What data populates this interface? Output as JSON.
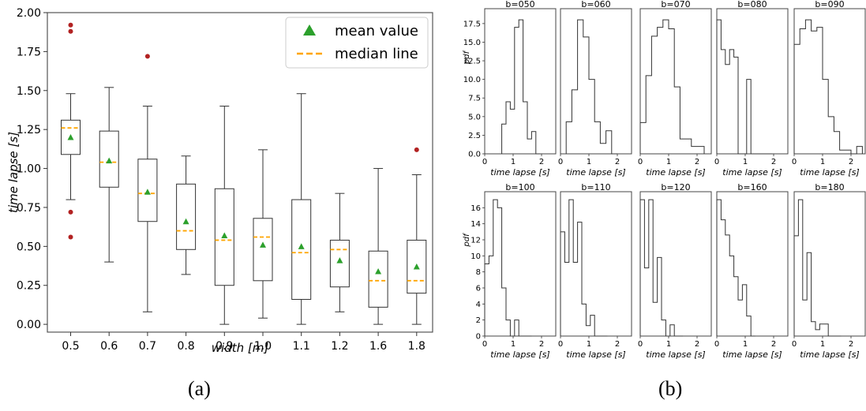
{
  "panel_a_caption": "(a)",
  "panel_b_caption": "(b)",
  "chart_data": [
    {
      "type": "box",
      "xlabel": "width [m]",
      "ylabel": "time lapse [s]",
      "ylim": [
        -0.05,
        2.0
      ],
      "yticks": [
        "0.00",
        "0.25",
        "0.50",
        "0.75",
        "1.00",
        "1.25",
        "1.50",
        "1.75",
        "2.00"
      ],
      "legend_position": "top-right",
      "legend": [
        {
          "label": "mean value",
          "marker": "green-triangle"
        },
        {
          "label": "median line",
          "marker": "orange-dashed-line"
        }
      ],
      "colors": {
        "mean": "#2ca02c",
        "median": "#ffa500",
        "outlier": "#b22222",
        "box": "#333333"
      },
      "categories": [
        "0.5",
        "0.6",
        "0.7",
        "0.8",
        "0.9",
        "1.0",
        "1.1",
        "1.2",
        "1.6",
        "1.8"
      ],
      "boxes": [
        {
          "whisker_low": 0.8,
          "q1": 1.09,
          "median": 1.26,
          "q3": 1.31,
          "whisker_high": 1.48,
          "mean": 1.2,
          "outliers": [
            1.92,
            1.88,
            0.72,
            0.56
          ]
        },
        {
          "whisker_low": 0.4,
          "q1": 0.88,
          "median": 1.04,
          "q3": 1.24,
          "whisker_high": 1.52,
          "mean": 1.05,
          "outliers": []
        },
        {
          "whisker_low": 0.08,
          "q1": 0.66,
          "median": 0.84,
          "q3": 1.06,
          "whisker_high": 1.4,
          "mean": 0.85,
          "outliers": [
            1.72
          ]
        },
        {
          "whisker_low": 0.32,
          "q1": 0.48,
          "median": 0.6,
          "q3": 0.9,
          "whisker_high": 1.08,
          "mean": 0.66,
          "outliers": []
        },
        {
          "whisker_low": 0.0,
          "q1": 0.25,
          "median": 0.54,
          "q3": 0.87,
          "whisker_high": 1.4,
          "mean": 0.57,
          "outliers": []
        },
        {
          "whisker_low": 0.04,
          "q1": 0.28,
          "median": 0.56,
          "q3": 0.68,
          "whisker_high": 1.12,
          "mean": 0.51,
          "outliers": []
        },
        {
          "whisker_low": 0.0,
          "q1": 0.16,
          "median": 0.46,
          "q3": 0.8,
          "whisker_high": 1.48,
          "mean": 0.5,
          "outliers": []
        },
        {
          "whisker_low": 0.08,
          "q1": 0.24,
          "median": 0.48,
          "q3": 0.54,
          "whisker_high": 0.84,
          "mean": 0.41,
          "outliers": []
        },
        {
          "whisker_low": 0.0,
          "q1": 0.11,
          "median": 0.28,
          "q3": 0.47,
          "whisker_high": 1.0,
          "mean": 0.34,
          "outliers": []
        },
        {
          "whisker_low": 0.0,
          "q1": 0.2,
          "median": 0.28,
          "q3": 0.54,
          "whisker_high": 0.96,
          "mean": 0.37,
          "outliers": [
            1.12
          ]
        }
      ]
    },
    {
      "type": "histogram-grid",
      "xlabel": "time lapse [s]",
      "ylabel": "pdf",
      "xlim": [
        0,
        2.5
      ],
      "xticks": [
        "0",
        "1",
        "2"
      ],
      "rows": [
        {
          "ylim": [
            0,
            19.5
          ],
          "yticks": [
            "0.0",
            "2.5",
            "5.0",
            "7.5",
            "10.0",
            "12.5",
            "15.0",
            "17.5"
          ],
          "panels": [
            {
              "title": "b=050",
              "edges": [
                0.6,
                0.75,
                0.9,
                1.05,
                1.2,
                1.35,
                1.5,
                1.65,
                1.8,
                1.95
              ],
              "values": [
                4,
                7,
                6,
                17,
                18,
                7,
                2,
                3,
                0
              ]
            },
            {
              "title": "b=060",
              "edges": [
                0.2,
                0.4,
                0.6,
                0.8,
                1.0,
                1.2,
                1.4,
                1.6,
                1.8,
                2.0
              ],
              "values": [
                4.3,
                8.6,
                18,
                15.7,
                10,
                4.3,
                1.4,
                3.1,
                0
              ]
            },
            {
              "title": "b=070",
              "edges": [
                0.0,
                0.2,
                0.4,
                0.6,
                0.8,
                1.0,
                1.2,
                1.4,
                1.6,
                1.8,
                2.0,
                2.25
              ],
              "values": [
                4.2,
                10.5,
                15.8,
                17,
                18,
                16.8,
                9,
                2,
                2,
                1,
                1
              ]
            },
            {
              "title": "b=080",
              "edges": [
                0.0,
                0.15,
                0.3,
                0.45,
                0.6,
                0.75,
                0.9,
                1.05,
                1.2,
                1.35,
                1.5,
                1.65,
                1.8,
                1.95
              ],
              "values": [
                18,
                14,
                12,
                14,
                13,
                0,
                0,
                10,
                0,
                0,
                0,
                0,
                0
              ]
            },
            {
              "title": "b=090",
              "edges": [
                0.0,
                0.2,
                0.4,
                0.6,
                0.8,
                1.0,
                1.2,
                1.4,
                1.6,
                1.8,
                2.0,
                2.2,
                2.4
              ],
              "values": [
                14.7,
                16.8,
                18,
                16.5,
                17,
                10,
                5,
                3,
                0.5,
                0.5,
                0,
                1
              ]
            }
          ]
        },
        {
          "ylim": [
            0,
            18
          ],
          "yticks": [
            "0",
            "2",
            "4",
            "6",
            "8",
            "10",
            "12",
            "14",
            "16"
          ],
          "panels": [
            {
              "title": "b=100",
              "edges": [
                0.0,
                0.15,
                0.3,
                0.45,
                0.6,
                0.75,
                0.9,
                1.05,
                1.2,
                1.35,
                1.5,
                1.65
              ],
              "values": [
                9,
                10,
                17,
                16,
                6,
                2,
                0,
                2,
                0,
                0,
                0
              ]
            },
            {
              "title": "b=110",
              "edges": [
                0.0,
                0.15,
                0.3,
                0.45,
                0.6,
                0.75,
                0.9,
                1.05,
                1.2,
                1.35,
                1.5,
                1.65
              ],
              "values": [
                13,
                9.2,
                17,
                9.2,
                14.2,
                4,
                1.3,
                2.6,
                0,
                0,
                0
              ]
            },
            {
              "title": "b=120",
              "edges": [
                0.0,
                0.15,
                0.3,
                0.45,
                0.6,
                0.75,
                0.9,
                1.05,
                1.2,
                1.35,
                1.5
              ],
              "values": [
                17,
                8.5,
                17,
                4.2,
                9.8,
                2,
                0,
                1.4,
                0,
                0
              ]
            },
            {
              "title": "b=160",
              "edges": [
                0.0,
                0.15,
                0.3,
                0.45,
                0.6,
                0.75,
                0.9,
                1.05,
                1.2,
                1.35
              ],
              "values": [
                17,
                14.5,
                12.6,
                10,
                7.4,
                4.5,
                6.4,
                2.5,
                0
              ]
            },
            {
              "title": "b=180",
              "edges": [
                0.0,
                0.15,
                0.3,
                0.45,
                0.6,
                0.75,
                0.9,
                1.05,
                1.2,
                1.35,
                1.5,
                1.65
              ],
              "values": [
                12.5,
                17,
                4.5,
                10.4,
                1.8,
                0.8,
                1.5,
                1.5,
                0,
                0,
                0
              ]
            }
          ]
        }
      ]
    }
  ]
}
